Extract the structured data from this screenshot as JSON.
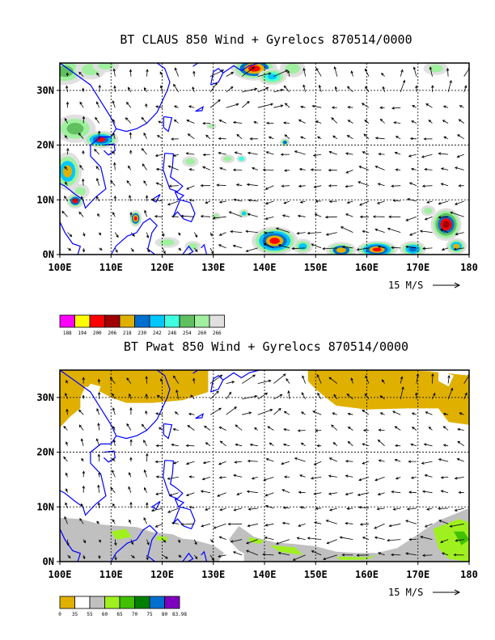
{
  "chart_data": [
    {
      "type": "heatmap",
      "title": "BT CLAUS 850 Wind + Gyrelocs 870514/0000",
      "x_axis": {
        "range": [
          100,
          180
        ],
        "ticks": [
          100,
          110,
          120,
          130,
          140,
          150,
          160,
          170,
          180
        ],
        "tick_labels": [
          "100E",
          "110E",
          "120E",
          "130E",
          "140E",
          "150E",
          "160E",
          "170E",
          "180"
        ]
      },
      "y_axis": {
        "range": [
          0,
          35
        ],
        "ticks": [
          0,
          10,
          20,
          30
        ],
        "tick_labels": [
          "0N",
          "10N",
          "20N",
          "30N"
        ]
      },
      "grid": true,
      "vector_reference": {
        "label": "15 M/S",
        "magnitude": 15
      },
      "colorbar": {
        "labels": [
          "188",
          "194",
          "200",
          "206",
          "218",
          "230",
          "242",
          "248",
          "254",
          "260",
          "266"
        ],
        "colors": [
          "#ff00ff",
          "#ffff00",
          "#ff0000",
          "#a00000",
          "#e0b000",
          "#0070d0",
          "#00c8ff",
          "#40ffe0",
          "#60c060",
          "#a0f0a0",
          "#e0e0e0"
        ]
      }
    },
    {
      "type": "heatmap",
      "title": "BT Pwat 850 Wind + Gyrelocs 870514/0000",
      "x_axis": {
        "range": [
          100,
          180
        ],
        "ticks": [
          100,
          110,
          120,
          130,
          140,
          150,
          160,
          170,
          180
        ],
        "tick_labels": [
          "100E",
          "110E",
          "120E",
          "130E",
          "140E",
          "150E",
          "160E",
          "170E",
          "180"
        ]
      },
      "y_axis": {
        "range": [
          0,
          35
        ],
        "ticks": [
          0,
          10,
          20,
          30
        ],
        "tick_labels": [
          "0N",
          "10N",
          "20N",
          "30N"
        ]
      },
      "grid": true,
      "vector_reference": {
        "label": "15 M/S",
        "magnitude": 15
      },
      "colorbar": {
        "labels": [
          "0",
          "35",
          "55",
          "60",
          "65",
          "70",
          "75",
          "80",
          "83.98"
        ],
        "colors": [
          "#e0b000",
          "#ffffff",
          "#c0c0c0",
          "#a0f020",
          "#40c000",
          "#008000",
          "#0070d0",
          "#8000c0"
        ]
      }
    }
  ]
}
